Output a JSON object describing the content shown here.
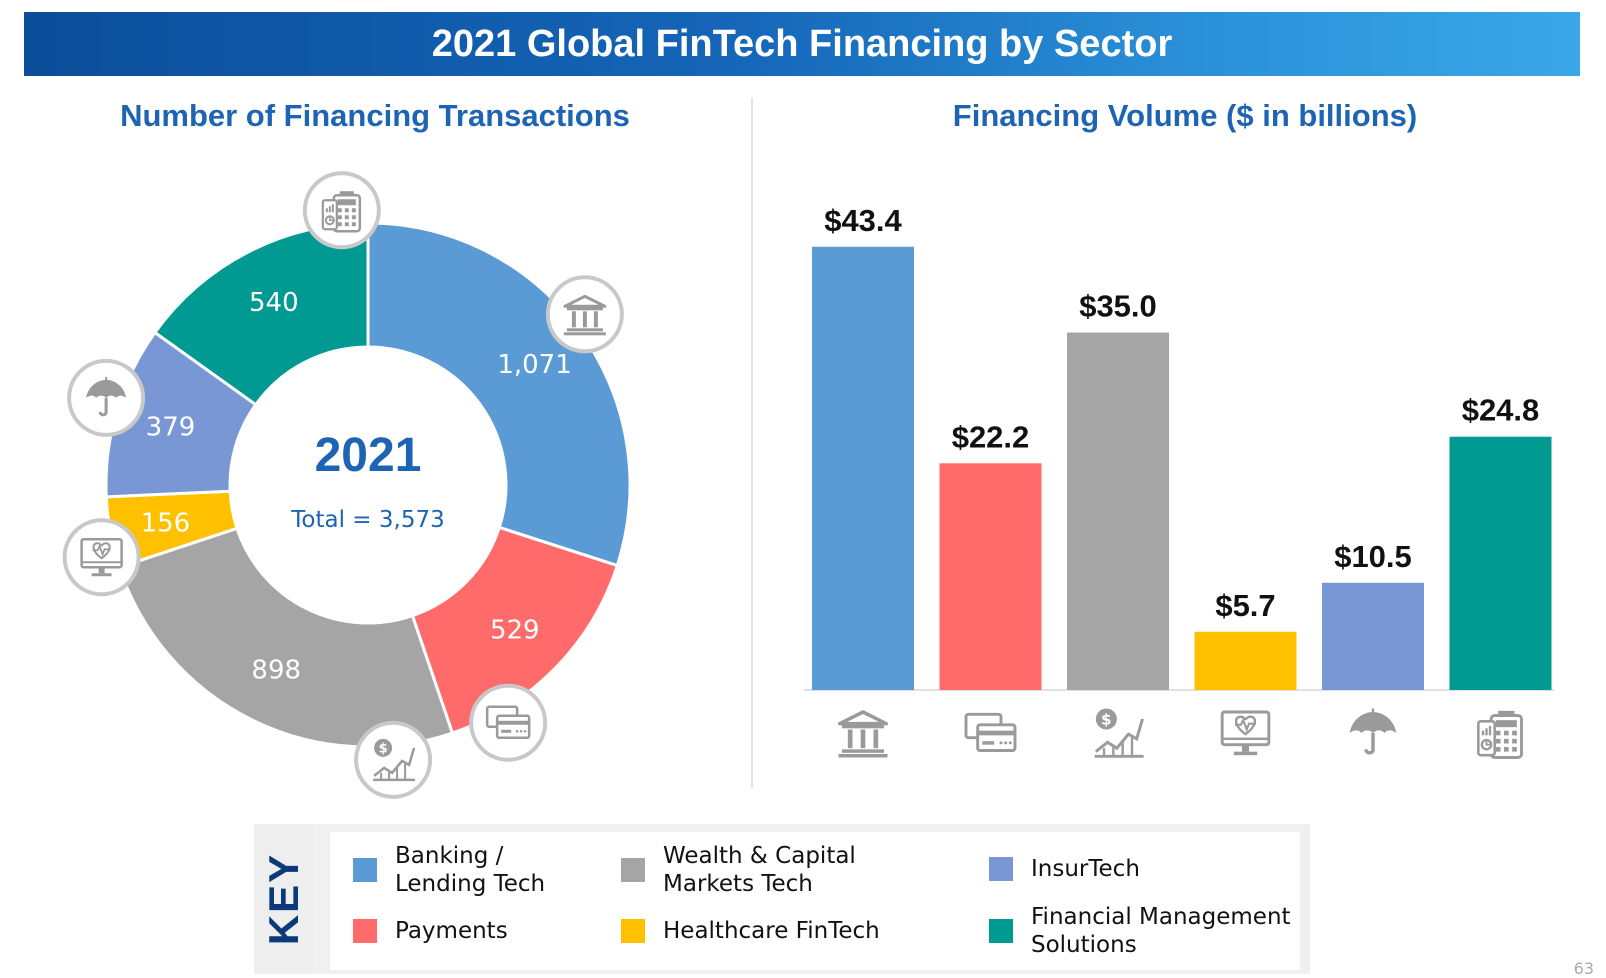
{
  "title": "2021 Global FinTech Financing by Sector",
  "left_subtitle": "Number of Financing Transactions",
  "right_subtitle": "Financing Volume ($ in billions)",
  "donut_center": {
    "year": "2021",
    "total": "Total = 3,573"
  },
  "colors": {
    "banking": "#5b9bd5",
    "payments": "#ff6b6b",
    "wealth": "#a5a5a5",
    "healthcare": "#ffc000",
    "insurtech": "#7a97d5",
    "fm": "#009a92"
  },
  "chart_data": [
    {
      "type": "pie",
      "title": "Number of Financing Transactions",
      "categories": [
        "Banking / Lending Tech",
        "Payments",
        "Wealth & Capital Markets Tech",
        "Healthcare FinTech",
        "InsurTech",
        "Financial Management Solutions"
      ],
      "values": [
        1071,
        529,
        898,
        156,
        379,
        540
      ],
      "labels": [
        "1,071",
        "529",
        "898",
        "156",
        "379",
        "540"
      ],
      "series_icons": [
        "bank-icon",
        "credit-card-icon",
        "dollar-chart-icon",
        "health-monitor-icon",
        "umbrella-icon",
        "calculator-icon"
      ]
    },
    {
      "type": "bar",
      "title": "Financing Volume ($ in billions)",
      "categories": [
        "Banking / Lending Tech",
        "Payments",
        "Wealth & Capital Markets Tech",
        "Healthcare FinTech",
        "InsurTech",
        "Financial Management Solutions"
      ],
      "values": [
        43.4,
        22.2,
        35.0,
        5.7,
        10.5,
        24.8
      ],
      "labels": [
        "$43.4",
        "$22.2",
        "$35.0",
        "$5.7",
        "$10.5",
        "$24.8"
      ],
      "category_icons": [
        "bank-icon",
        "credit-card-icon",
        "dollar-chart-icon",
        "health-monitor-icon",
        "umbrella-icon",
        "calculator-icon"
      ],
      "ylim": [
        0,
        47
      ]
    }
  ],
  "key": {
    "label": "KEY",
    "items": [
      {
        "label": "Banking /\nLending Tech",
        "color": "#5b9bd5"
      },
      {
        "label": "Payments",
        "color": "#ff6b6b"
      },
      {
        "label": "Wealth & Capital\nMarkets Tech",
        "color": "#a5a5a5"
      },
      {
        "label": "Healthcare FinTech",
        "color": "#ffc000"
      },
      {
        "label": "InsurTech",
        "color": "#7a97d5"
      },
      {
        "label": "Financial Management\nSolutions",
        "color": "#009a92"
      }
    ]
  },
  "page_number": "63"
}
